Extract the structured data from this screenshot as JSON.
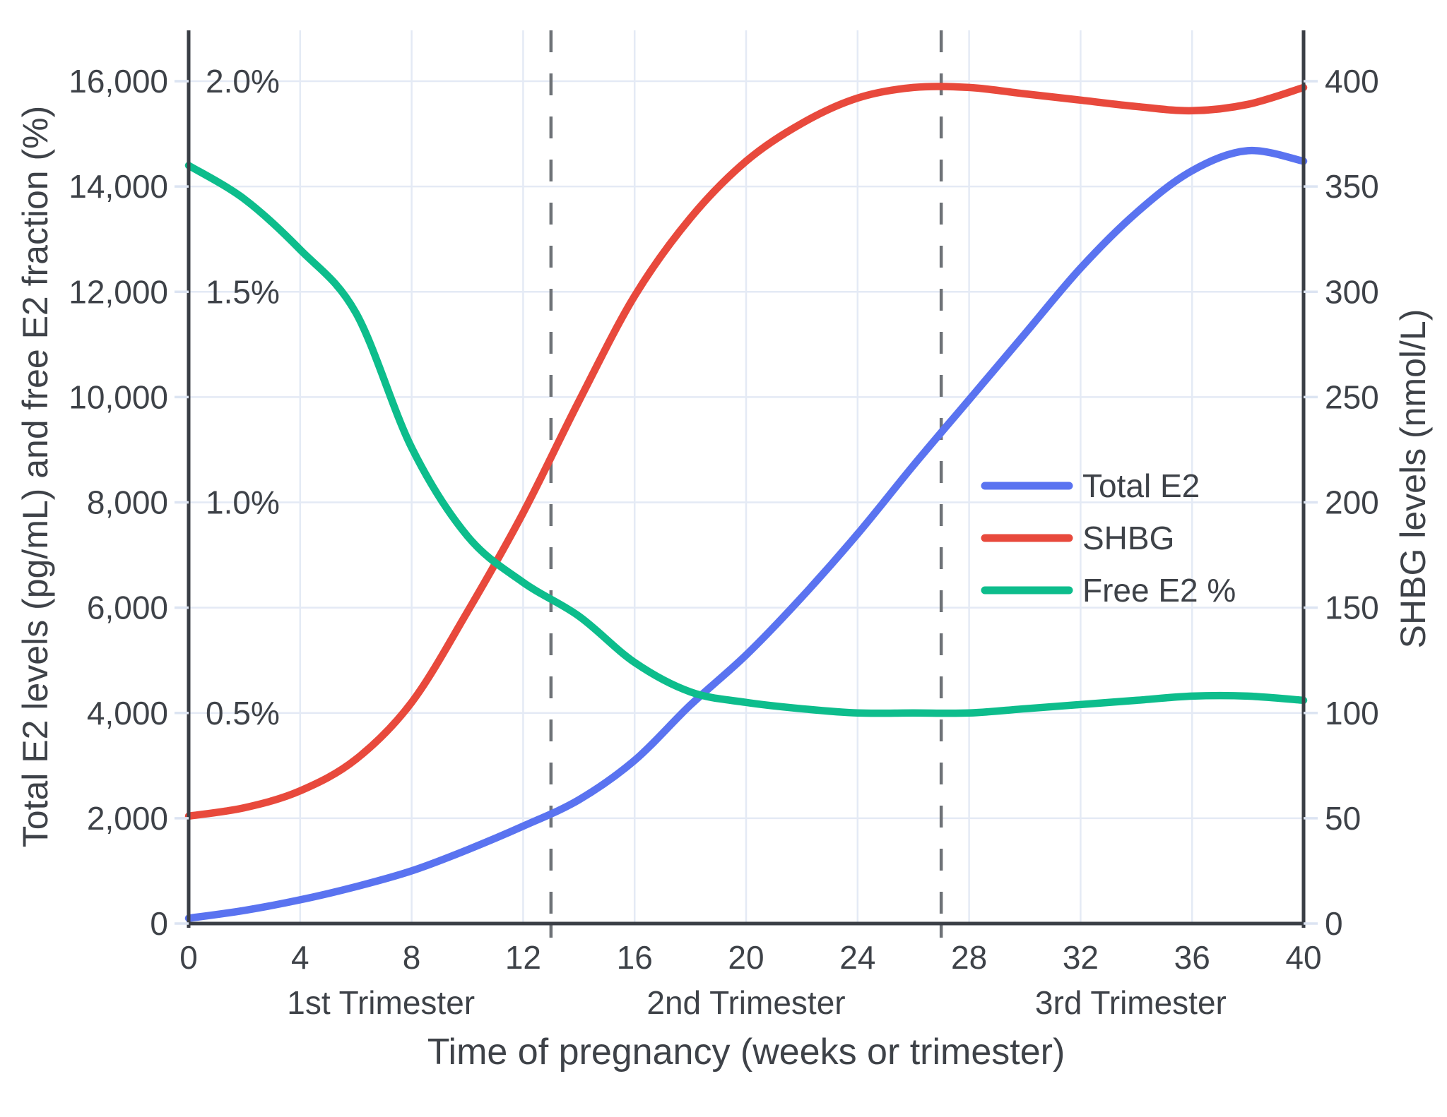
{
  "chart_data": {
    "type": "line",
    "title": "",
    "xlabel": "Time of pregnancy (weeks or trimester)",
    "ylabel_left": "Total E2 levels (pg/mL) and free E2 fraction (%)",
    "ylabel_right": "SHBG levels (nmol/L)",
    "xlim": [
      0,
      40
    ],
    "ylim_left": [
      0,
      16965
    ],
    "ylim_right": [
      0,
      424
    ],
    "grid": true,
    "legend_position": "center-right",
    "x_tick_values": [
      0,
      4,
      8,
      12,
      16,
      20,
      24,
      28,
      32,
      36,
      40
    ],
    "x_tick_labels": [
      "0",
      "4",
      "8",
      "12",
      "16",
      "20",
      "24",
      "28",
      "32",
      "36",
      "40"
    ],
    "y_left_tick_values": [
      0,
      2000,
      4000,
      6000,
      8000,
      10000,
      12000,
      14000,
      16000
    ],
    "y_left_tick_labels": [
      "0",
      "2,000",
      "4,000",
      "6,000",
      "8,000",
      "10,000",
      "12,000",
      "14,000",
      "16,000"
    ],
    "y_right_tick_values": [
      0,
      50,
      100,
      150,
      200,
      250,
      300,
      350,
      400
    ],
    "y_right_tick_labels": [
      "0",
      "50",
      "100",
      "150",
      "200",
      "250",
      "300",
      "350",
      "400"
    ],
    "percent_labels": [
      {
        "label": "2.0%",
        "at_left_value": 16000
      },
      {
        "label": "1.5%",
        "at_left_value": 12000
      },
      {
        "label": "1.0%",
        "at_left_value": 8000
      },
      {
        "label": "0.5%",
        "at_left_value": 4000
      }
    ],
    "trimester_dividers_weeks": [
      13,
      27
    ],
    "trimester_labels": [
      {
        "label": "1st Trimester",
        "center_week": 6.9
      },
      {
        "label": "2nd Trimester",
        "center_week": 20
      },
      {
        "label": "3rd Trimester",
        "center_week": 33.8
      }
    ],
    "legend": [
      {
        "label": "Total E2",
        "color": "#5A73F0"
      },
      {
        "label": "SHBG",
        "color": "#E8493C"
      },
      {
        "label": "Free E2 %",
        "color": "#0DBD8C"
      }
    ],
    "series": [
      {
        "name": "Total E2",
        "axis": "left",
        "unit": "pg/mL",
        "color": "#5A73F0",
        "x": [
          0,
          2,
          4,
          6,
          8,
          10,
          12,
          14,
          16,
          18,
          20,
          22,
          24,
          26,
          28,
          30,
          32,
          34,
          36,
          38,
          40
        ],
        "y": [
          100,
          250,
          450,
          700,
          1000,
          1400,
          1850,
          2350,
          3100,
          4150,
          5100,
          6200,
          7400,
          8700,
          9950,
          11200,
          12450,
          13500,
          14300,
          14680,
          14480
        ]
      },
      {
        "name": "SHBG",
        "axis": "right",
        "unit": "nmol/L",
        "color": "#E8493C",
        "x": [
          0,
          2,
          4,
          6,
          8,
          10,
          12,
          14,
          16,
          18,
          20,
          22,
          24,
          26,
          28,
          30,
          32,
          34,
          36,
          38,
          40
        ],
        "y": [
          51,
          55,
          63,
          78,
          105,
          148,
          195,
          248,
          298,
          335,
          362,
          380,
          392,
          397,
          397,
          394,
          391,
          388,
          386,
          389,
          397
        ]
      },
      {
        "name": "Free E2 %",
        "axis": "percent",
        "unit": "%",
        "color": "#0DBD8C",
        "x": [
          0,
          2,
          4,
          6,
          8,
          10,
          12,
          14,
          16,
          18,
          20,
          22,
          24,
          26,
          28,
          30,
          32,
          34,
          36,
          38,
          40
        ],
        "y": [
          1.8,
          1.72,
          1.6,
          1.45,
          1.13,
          0.92,
          0.81,
          0.73,
          0.62,
          0.55,
          0.525,
          0.51,
          0.5,
          0.5,
          0.5,
          0.51,
          0.52,
          0.53,
          0.54,
          0.54,
          0.53
        ]
      }
    ],
    "colors": {
      "background": "#FFFFFF",
      "axis_spine": "#3A3E45",
      "text": "#3E4248",
      "gridline": "#E4EAF5",
      "tick": "#DCE4F2",
      "divider": "#6E7277"
    }
  }
}
